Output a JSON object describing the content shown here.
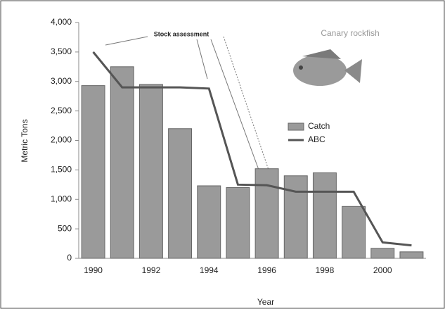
{
  "chart_data": {
    "type": "bar-line",
    "annotations": [
      "Stock assessment",
      "Canary rockfish"
    ],
    "x_label": "Year",
    "y_label": "Metric Tons",
    "categories": [
      "1990",
      null,
      "1992",
      null,
      "1994",
      null,
      "1996",
      null,
      "1998",
      null,
      "2000",
      null
    ],
    "series": [
      {
        "name": "Catch",
        "type": "bar",
        "color": "#9a9a9a",
        "values": [
          2930,
          3250,
          2950,
          2200,
          1230,
          1200,
          1520,
          1400,
          1450,
          880,
          170,
          110
        ]
      },
      {
        "name": "ABC",
        "type": "line",
        "color": "#555555",
        "values": [
          3500,
          2900,
          2900,
          2900,
          2880,
          1250,
          1240,
          1130,
          1130,
          1130,
          270,
          220
        ]
      }
    ],
    "ylim": [
      0,
      4000
    ],
    "yticks": [
      0,
      500,
      {
        "value": 1000,
        "label": "1,000"
      },
      {
        "value": 1500,
        "label": "1,500"
      },
      {
        "value": 2000,
        "label": "2,000"
      },
      {
        "value": 2500,
        "label": "2,500"
      },
      {
        "value": 3000,
        "label": "3,000"
      },
      {
        "value": 3500,
        "label": "3,500"
      },
      {
        "value": 4000,
        "label": "4,000"
      }
    ]
  }
}
